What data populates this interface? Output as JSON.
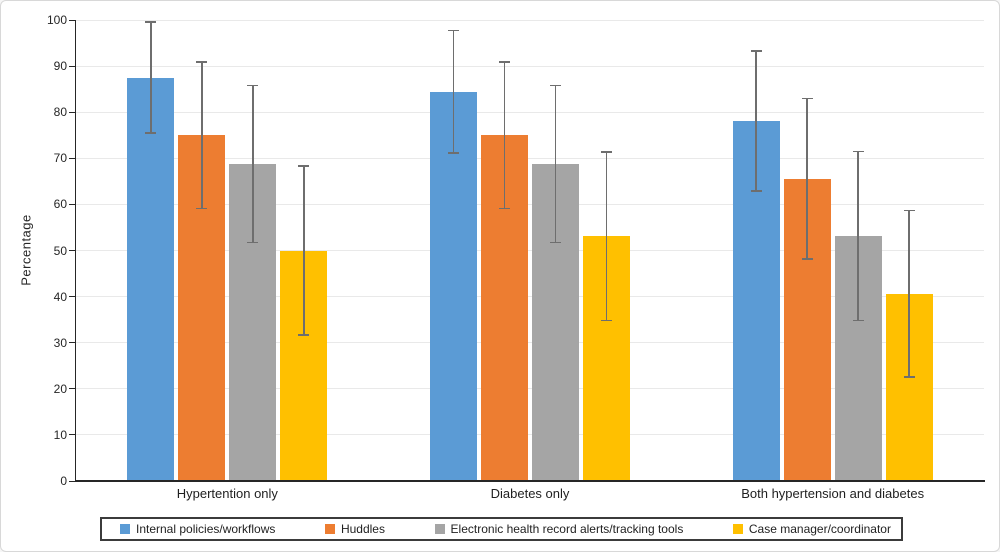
{
  "chart_data": {
    "type": "bar",
    "title": "",
    "ylabel": "Percentage",
    "xlabel": "",
    "ylim": [
      0,
      100
    ],
    "ytick_step": 10,
    "yticks": [
      0,
      10,
      20,
      30,
      40,
      50,
      60,
      70,
      80,
      90,
      100
    ],
    "grid": "horizontal",
    "has_error_bars": true,
    "legend_position": "bottom-boxed",
    "categories": [
      "Hypertention only",
      "Diabetes only",
      "Both hypertension and diabetes"
    ],
    "series": [
      {
        "name": "Internal policies/workflows",
        "color": "#5B9BD5",
        "values": [
          87.5,
          84.4,
          78.1
        ],
        "error_low": [
          75.5,
          71.1,
          62.9
        ],
        "error_high": [
          99.6,
          97.7,
          93.3
        ]
      },
      {
        "name": "Huddles",
        "color": "#ED7D31",
        "values": [
          75.0,
          75.0,
          65.6
        ],
        "error_low": [
          59.1,
          59.1,
          48.2
        ],
        "error_high": [
          90.9,
          90.9,
          83.0
        ]
      },
      {
        "name": "Electronic health record alerts/tracking tools",
        "color": "#A5A5A5",
        "values": [
          68.8,
          68.8,
          53.1
        ],
        "error_low": [
          51.7,
          51.7,
          34.8
        ],
        "error_high": [
          85.8,
          85.8,
          71.5
        ]
      },
      {
        "name": "Case manager/coordinator",
        "color": "#FFC000",
        "values": [
          50.0,
          53.1,
          40.6
        ],
        "error_low": [
          31.7,
          34.8,
          22.6
        ],
        "error_high": [
          68.3,
          71.4,
          58.7
        ]
      }
    ]
  },
  "colors": {
    "error_bar": "#6E6E6E",
    "gridline": "#E9E9E9",
    "axis": "#262626",
    "text": "#262626",
    "legend_border": "#3B3B3B",
    "frame_border": "#D8D8D8",
    "background": "#FFFFFF"
  }
}
